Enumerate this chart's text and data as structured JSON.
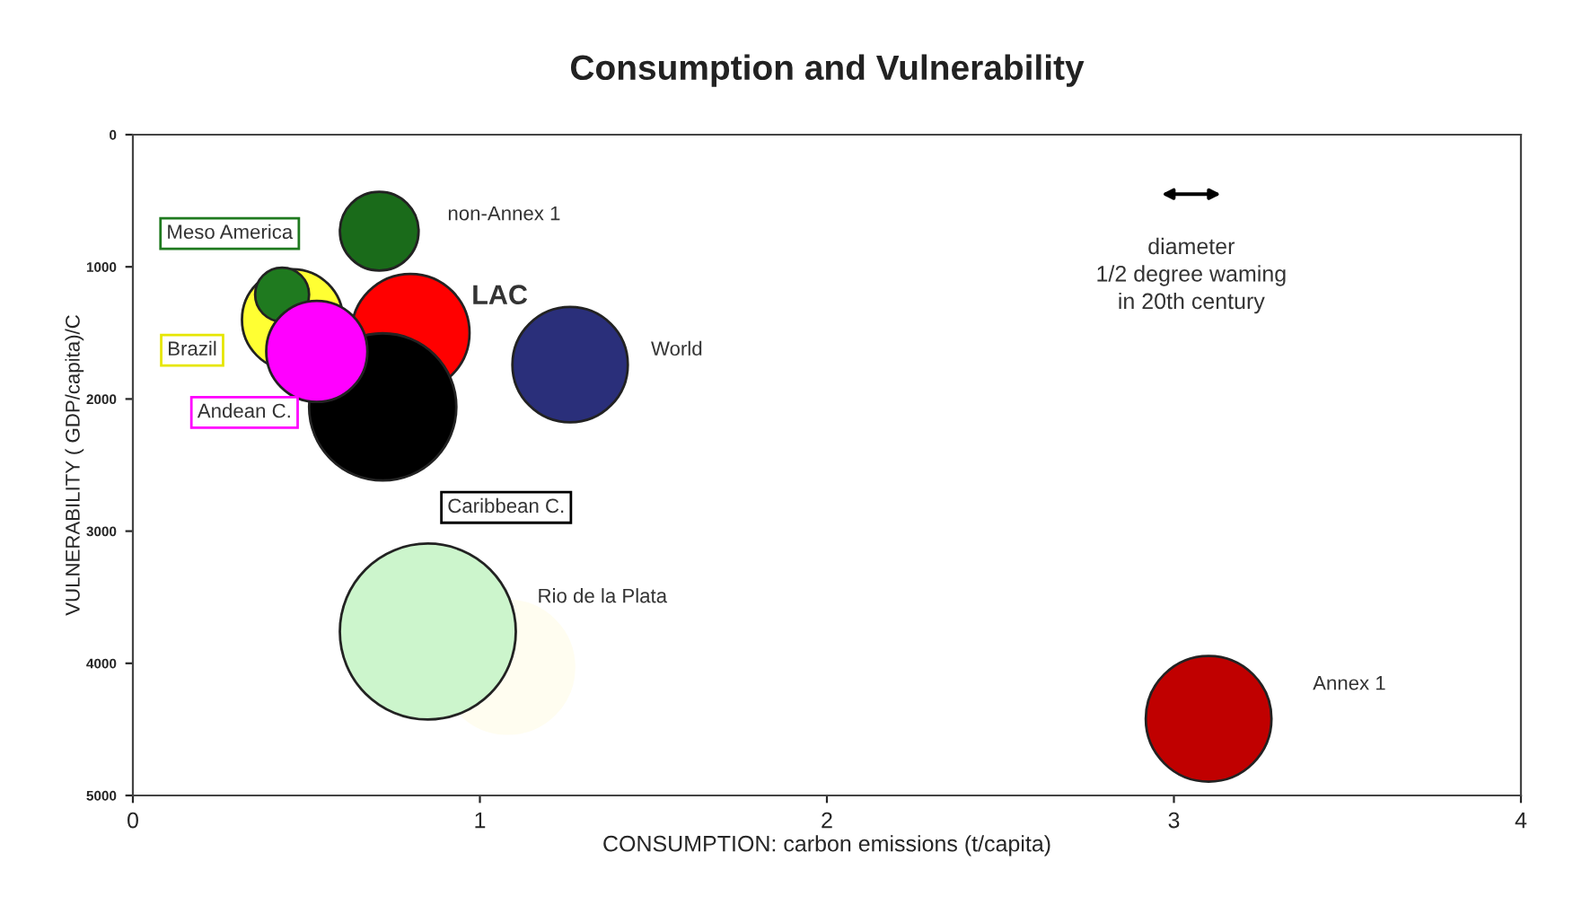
{
  "chart_data": {
    "type": "bubble",
    "title": "Consumption and Vulnerability",
    "xlabel": "CONSUMPTION: carbon emissions (t/capita)",
    "ylabel": "VULNERABILITY ( GDP/capita)/C",
    "xlim": [
      0,
      4
    ],
    "xticks": [
      0,
      1,
      2,
      3,
      4
    ],
    "ylim": [
      5000,
      0
    ],
    "yticks": [
      0,
      1000,
      2000,
      3000,
      4000,
      5000
    ],
    "grid": false,
    "legend": false,
    "annotations": [
      "diameter\n1/2 degree waming\nin 20th century"
    ],
    "series": [
      {
        "color": "#fffdf0",
        "x": [
          1.08
        ],
        "values": [
          4030
        ],
        "sizes": [
          0.57
        ]
      },
      {
        "name": "non-Annex 1",
        "color": "#1a6b1a",
        "x": [
          0.71
        ],
        "values": [
          730
        ],
        "sizes": [
          0.2
        ]
      },
      {
        "name": "Rio de la Plata",
        "color": "#ccf5cc",
        "x": [
          0.85
        ],
        "values": [
          3760
        ],
        "sizes": [
          1
        ]
      },
      {
        "name": "Brazil",
        "color": "#ffff33",
        "x": [
          0.46
        ],
        "values": [
          1400
        ],
        "sizes": [
          0.33
        ]
      },
      {
        "name": "Meso America",
        "color": "#1f7a1f",
        "x": [
          0.43
        ],
        "values": [
          1210
        ],
        "sizes": [
          0.094
        ]
      },
      {
        "name": "LAC",
        "color": "#ff0000",
        "x": [
          0.8
        ],
        "values": [
          1500
        ],
        "sizes": [
          0.45
        ]
      },
      {
        "name": "Caribbean C.",
        "color": "#000000",
        "x": [
          0.72
        ],
        "values": [
          2060
        ],
        "sizes": [
          0.7
        ]
      },
      {
        "name": "Andean C.",
        "color": "#ff00ff",
        "x": [
          0.53
        ],
        "values": [
          1640
        ],
        "sizes": [
          0.33
        ]
      },
      {
        "name": "World",
        "color": "#2a2f7a",
        "x": [
          1.26
        ],
        "values": [
          1740
        ],
        "sizes": [
          0.43
        ]
      },
      {
        "name": "Annex 1",
        "color": "#c00000",
        "x": [
          3.1
        ],
        "values": [
          4420
        ],
        "sizes": [
          0.51
        ]
      }
    ]
  }
}
